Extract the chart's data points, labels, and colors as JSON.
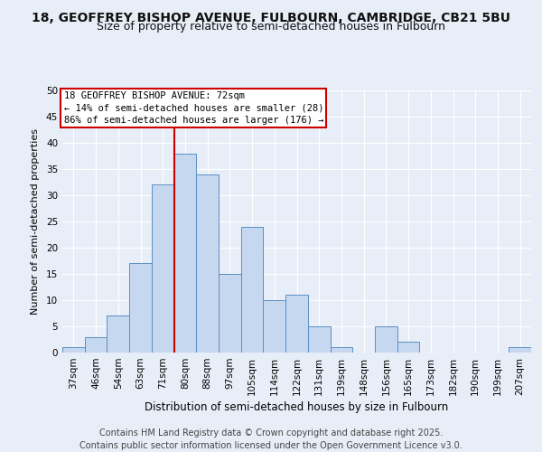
{
  "title_line1": "18, GEOFFREY BISHOP AVENUE, FULBOURN, CAMBRIDGE, CB21 5BU",
  "title_line2": "Size of property relative to semi-detached houses in Fulbourn",
  "xlabel": "Distribution of semi-detached houses by size in Fulbourn",
  "ylabel": "Number of semi-detached properties",
  "bins": [
    "37sqm",
    "46sqm",
    "54sqm",
    "63sqm",
    "71sqm",
    "80sqm",
    "88sqm",
    "97sqm",
    "105sqm",
    "114sqm",
    "122sqm",
    "131sqm",
    "139sqm",
    "148sqm",
    "156sqm",
    "165sqm",
    "173sqm",
    "182sqm",
    "190sqm",
    "199sqm",
    "207sqm"
  ],
  "values": [
    1,
    3,
    7,
    17,
    32,
    38,
    34,
    15,
    24,
    10,
    11,
    5,
    1,
    0,
    5,
    2,
    0,
    0,
    0,
    0,
    1
  ],
  "bar_color": "#c5d8f0",
  "bar_edge_color": "#5a8fc3",
  "vline_color": "#cc0000",
  "vline_x_index": 4,
  "annotation_line1": "18 GEOFFREY BISHOP AVENUE: 72sqm",
  "annotation_line2": "← 14% of semi-detached houses are smaller (28)",
  "annotation_line3": "86% of semi-detached houses are larger (176) →",
  "ylim": [
    0,
    50
  ],
  "yticks": [
    0,
    5,
    10,
    15,
    20,
    25,
    30,
    35,
    40,
    45,
    50
  ],
  "background_color": "#e8eef8",
  "grid_color": "#ffffff",
  "footer_text": "Contains HM Land Registry data © Crown copyright and database right 2025.\nContains public sector information licensed under the Open Government Licence v3.0.",
  "title_fontsize": 10,
  "subtitle_fontsize": 9,
  "annotation_fontsize": 7.5,
  "ylabel_fontsize": 8,
  "xlabel_fontsize": 8.5,
  "tick_fontsize": 7.5,
  "footer_fontsize": 7
}
